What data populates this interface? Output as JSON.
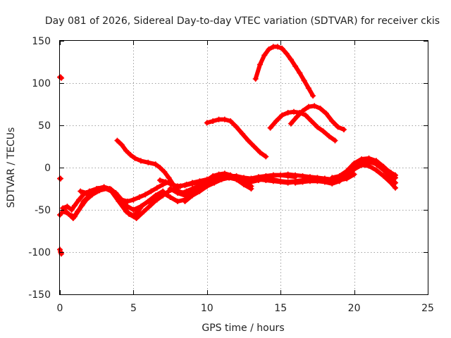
{
  "chart_data": {
    "type": "scatter",
    "title": "Day 081 of 2026, Sidereal Day-to-day VTEC variation (SDTVAR) for receiver ckis",
    "xlabel": "GPS time / hours",
    "ylabel": "SDTVAR / TECUs",
    "xlim": [
      0,
      25
    ],
    "ylim": [
      -150,
      150
    ],
    "xticks": [
      0,
      5,
      10,
      15,
      20,
      25
    ],
    "yticks": [
      -150,
      -100,
      -50,
      0,
      50,
      100,
      150
    ],
    "grid": true,
    "marker": "+",
    "color": "#ff0000",
    "series": [
      {
        "name": "arc-01",
        "x": [
          0.0,
          0.05,
          0.1
        ],
        "y": [
          107,
          107,
          106
        ]
      },
      {
        "name": "arc-02",
        "x": [
          0.0,
          0.05
        ],
        "y": [
          -13,
          -13
        ]
      },
      {
        "name": "arc-03",
        "x": [
          0.0,
          0.05,
          0.1
        ],
        "y": [
          -97,
          -100,
          -102
        ]
      },
      {
        "name": "arc-04",
        "x": [
          0.0,
          0.3,
          0.6,
          1.0,
          1.3,
          1.6,
          2.0,
          2.5,
          3.0,
          3.5,
          4.0,
          4.5,
          5.0,
          5.3,
          5.6,
          6.0,
          6.5
        ],
        "y": [
          -56,
          -50,
          -55,
          -58,
          -50,
          -40,
          -33,
          -27,
          -24,
          -28,
          -40,
          -52,
          -57,
          -52,
          -45,
          -40,
          -35
        ]
      },
      {
        "name": "arc-05",
        "x": [
          0.2,
          0.5,
          0.8,
          1.0,
          1.3,
          1.6,
          2.0,
          2.5,
          3.0,
          3.5,
          4.0,
          4.5,
          5.0,
          5.5,
          6.0,
          6.5,
          7.0
        ],
        "y": [
          -48,
          -46,
          -50,
          -45,
          -38,
          -32,
          -28,
          -25,
          -23,
          -26,
          -35,
          -45,
          -50,
          -46,
          -40,
          -33,
          -28
        ]
      },
      {
        "name": "arc-06",
        "x": [
          0.3,
          0.6,
          0.9,
          1.2,
          1.5,
          1.8,
          2.2,
          2.7,
          3.2,
          3.7,
          4.2,
          4.7,
          5.2,
          5.7,
          6.2,
          6.7
        ],
        "y": [
          -52,
          -55,
          -60,
          -52,
          -45,
          -38,
          -32,
          -27,
          -25,
          -30,
          -42,
          -55,
          -60,
          -52,
          -44,
          -36
        ]
      },
      {
        "name": "arc-07",
        "x": [
          1.4,
          1.8,
          2.2,
          2.6,
          3.0,
          3.4,
          3.8,
          4.2,
          4.6,
          5.0,
          5.4,
          5.8,
          6.2,
          6.6,
          7.0,
          7.4
        ],
        "y": [
          -28,
          -30,
          -28,
          -25,
          -23,
          -25,
          -30,
          -38,
          -40,
          -38,
          -35,
          -32,
          -28,
          -24,
          -20,
          -17
        ]
      },
      {
        "name": "arc-08",
        "x": [
          3.9,
          4.2,
          4.5,
          4.8,
          5.1,
          5.5,
          6.0,
          6.5,
          6.8,
          7.1,
          7.4,
          7.7,
          8.0,
          8.3,
          8.6,
          9.0,
          9.4
        ],
        "y": [
          32,
          27,
          20,
          15,
          11,
          8,
          6,
          4,
          0,
          -5,
          -12,
          -20,
          -27,
          -30,
          -28,
          -25,
          -22
        ]
      },
      {
        "name": "arc-09",
        "x": [
          6.2,
          6.6,
          7.0,
          7.4,
          7.8,
          8.2,
          8.6,
          9.0,
          9.5,
          10.0,
          10.5,
          11.0
        ],
        "y": [
          -42,
          -38,
          -33,
          -28,
          -25,
          -22,
          -20,
          -18,
          -17,
          -15,
          -13,
          -12
        ]
      },
      {
        "name": "arc-10",
        "x": [
          6.8,
          7.2,
          7.6,
          8.0,
          8.5,
          9.0,
          9.5,
          10.0,
          10.5,
          11.0,
          11.5,
          12.0
        ],
        "y": [
          -15,
          -17,
          -20,
          -22,
          -21,
          -19,
          -17,
          -15,
          -13,
          -12,
          -12,
          -13
        ]
      },
      {
        "name": "arc-11",
        "x": [
          7.0,
          7.5,
          8.0,
          8.5,
          9.0,
          9.5,
          10.0,
          10.5,
          11.0,
          11.5,
          12.0,
          12.5,
          13.0
        ],
        "y": [
          -30,
          -35,
          -40,
          -38,
          -32,
          -26,
          -20,
          -16,
          -13,
          -12,
          -14,
          -18,
          -22
        ]
      },
      {
        "name": "arc-12",
        "x": [
          7.5,
          8.0,
          8.5,
          9.0,
          9.3,
          9.6,
          10.0,
          10.4,
          10.8,
          11.2,
          11.6,
          12.0,
          12.5,
          13.0,
          13.5,
          14.0,
          14.5,
          15.0,
          15.5,
          16.0
        ],
        "y": [
          -25,
          -30,
          -33,
          -28,
          -24,
          -20,
          -15,
          -10,
          -8,
          -7,
          -9,
          -12,
          -14,
          -13,
          -11,
          -10,
          -9,
          -9,
          -10,
          -11
        ]
      },
      {
        "name": "arc-13",
        "x": [
          8.5,
          9.0,
          9.5,
          10.0,
          10.3,
          10.6,
          11.0,
          11.5,
          12.0,
          12.5,
          13.0
        ],
        "y": [
          -40,
          -33,
          -28,
          -22,
          -18,
          -15,
          -11,
          -10,
          -14,
          -20,
          -25
        ]
      },
      {
        "name": "arc-14",
        "x": [
          9.0,
          9.5,
          10.0,
          10.5,
          11.0,
          11.5,
          12.0,
          12.5,
          13.0,
          13.5,
          14.0,
          14.5,
          15.0,
          15.5,
          16.0,
          16.5,
          17.0,
          17.5,
          18.0
        ],
        "y": [
          -18,
          -16,
          -14,
          -13,
          -12,
          -10,
          -10,
          -12,
          -13,
          -12,
          -10,
          -9,
          -9,
          -8,
          -9,
          -10,
          -11,
          -12,
          -13
        ]
      },
      {
        "name": "arc-15",
        "x": [
          10.0,
          10.5,
          11.0,
          11.5,
          12.0,
          12.5,
          13.0,
          13.5,
          14.0,
          14.5,
          15.0,
          15.5,
          16.0,
          16.5,
          17.0,
          17.5,
          18.0,
          18.5,
          19.0,
          19.5,
          20.0
        ],
        "y": [
          -22,
          -18,
          -14,
          -12,
          -13,
          -15,
          -17,
          -15,
          -13,
          -14,
          -16,
          -17,
          -16,
          -15,
          -15,
          -14,
          -13,
          -14,
          -15,
          -13,
          -8
        ]
      },
      {
        "name": "arc-16",
        "x": [
          10.0,
          10.4,
          10.8,
          11.2,
          11.6,
          12.0,
          12.4,
          12.8,
          13.2,
          13.6,
          14.0
        ],
        "y": [
          53,
          55,
          57,
          57,
          55,
          48,
          40,
          32,
          25,
          18,
          13
        ]
      },
      {
        "name": "arc-17",
        "x": [
          13.3,
          13.6,
          13.9,
          14.2,
          14.5,
          14.8,
          15.1,
          15.4,
          15.7,
          16.0,
          16.3,
          16.6,
          16.9,
          17.2
        ],
        "y": [
          105,
          122,
          133,
          140,
          143,
          143,
          141,
          135,
          128,
          120,
          112,
          103,
          94,
          85
        ]
      },
      {
        "name": "arc-18",
        "x": [
          14.3,
          14.7,
          15.1,
          15.5,
          15.9,
          16.3,
          16.7,
          17.1,
          17.5,
          17.9,
          18.3,
          18.7
        ],
        "y": [
          47,
          55,
          62,
          65,
          66,
          65,
          62,
          55,
          48,
          43,
          37,
          32
        ]
      },
      {
        "name": "arc-19",
        "x": [
          15.7,
          16.1,
          16.5,
          16.9,
          17.3,
          17.7,
          18.1,
          18.5,
          18.9,
          19.3
        ],
        "y": [
          52,
          60,
          67,
          72,
          73,
          70,
          64,
          55,
          48,
          45
        ]
      },
      {
        "name": "arc-20",
        "x": [
          13.5,
          14.0,
          14.5,
          15.0,
          15.5,
          16.0,
          16.5,
          17.0,
          17.5,
          18.0,
          18.5,
          19.0,
          19.5,
          20.0,
          20.5,
          21.0,
          21.5,
          22.0,
          22.5,
          22.8
        ],
        "y": [
          -14,
          -15,
          -16,
          -17,
          -18,
          -17,
          -16,
          -15,
          -15,
          -16,
          -18,
          -16,
          -10,
          -2,
          3,
          2,
          -3,
          -10,
          -18,
          -24
        ]
      },
      {
        "name": "arc-21",
        "x": [
          16.0,
          16.5,
          17.0,
          17.5,
          18.0,
          18.5,
          19.0,
          19.5,
          20.0,
          20.5,
          21.0,
          21.5,
          22.0,
          22.5,
          22.8
        ],
        "y": [
          -18,
          -17,
          -16,
          -16,
          -17,
          -19,
          -16,
          -8,
          0,
          6,
          7,
          4,
          -3,
          -12,
          -18
        ]
      },
      {
        "name": "arc-22",
        "x": [
          17.5,
          18.0,
          18.5,
          19.0,
          19.5,
          20.0,
          20.5,
          21.0,
          21.5,
          22.0,
          22.5,
          22.8
        ],
        "y": [
          -14,
          -15,
          -17,
          -14,
          -6,
          4,
          9,
          10,
          8,
          1,
          -7,
          -12
        ]
      },
      {
        "name": "arc-23",
        "x": [
          18.5,
          19.0,
          19.5,
          20.0,
          20.5,
          21.0,
          21.5,
          22.0,
          22.5,
          22.8
        ],
        "y": [
          -12,
          -10,
          -4,
          5,
          10,
          11,
          8,
          0,
          -6,
          -9
        ]
      }
    ]
  }
}
